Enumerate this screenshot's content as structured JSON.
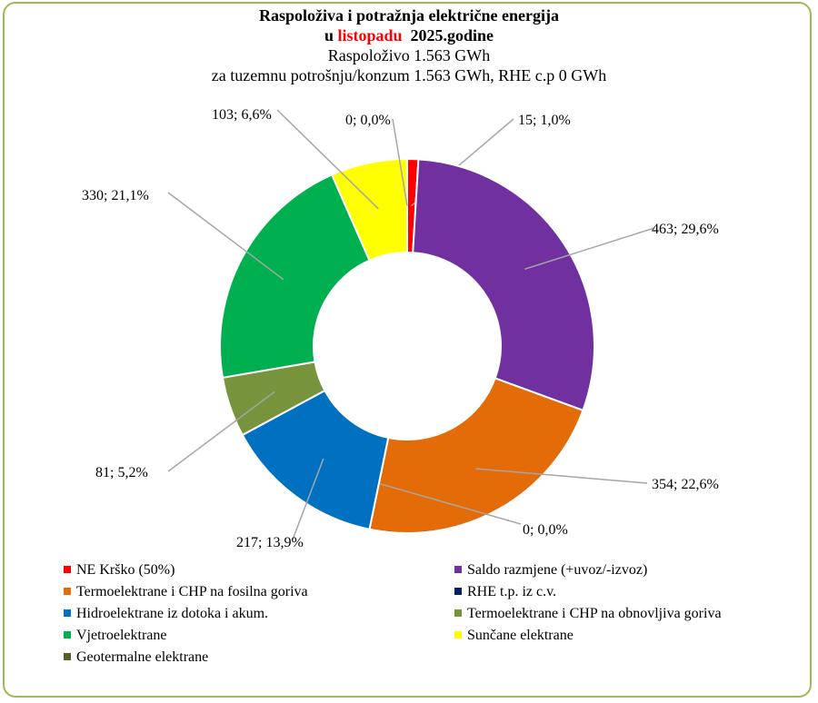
{
  "chart_data": {
    "type": "pie",
    "variant": "donut",
    "title_line1": "Raspoloživa  i potražnja  električne  energija",
    "title_prefix": "u",
    "title_month": "listopadu",
    "title_suffix": "2025.godine",
    "subtitle1": "Raspoloživo  1.563  GWh",
    "subtitle2": "za tuzemnu potrošnju/konzum   1.563  GWh, RHE c.p 0 GWh",
    "slices": [
      {
        "name": "NE Krško (50%)",
        "value": 15,
        "label": "15; 1,0%",
        "color": "#ff0000"
      },
      {
        "name": "Saldo razmjene (+uvoz/-izvoz)",
        "value": 463,
        "label": "463; 29,6%",
        "color": "#7030a0"
      },
      {
        "name": "Termoelektrane i CHP na fosilna goriva",
        "value": 354,
        "label": "354; 22,6%",
        "color": "#e36c09"
      },
      {
        "name": "RHE t.p. iz c.v.",
        "value": 0,
        "label": "0; 0,0%",
        "color": "#002060"
      },
      {
        "name": "Hidroelektrane iz dotoka i akum.",
        "value": 217,
        "label": "217; 13,9%",
        "color": "#0070c0"
      },
      {
        "name": "Termoelektrane i CHP na obnovljiva goriva",
        "value": 81,
        "label": "81; 5,2%",
        "color": "#77933c"
      },
      {
        "name": "Vjetroelektrane",
        "value": 330,
        "label": "330; 21,1%",
        "color": "#00b050"
      },
      {
        "name": "Sunčane elektrane",
        "value": 103,
        "label": "103; 6,6%",
        "color": "#ffff00"
      },
      {
        "name": "Geotermalne elektrane",
        "value": 0,
        "label": "0; 0,0%",
        "color": "#4f6228"
      }
    ],
    "legend_placement": "bottom"
  }
}
